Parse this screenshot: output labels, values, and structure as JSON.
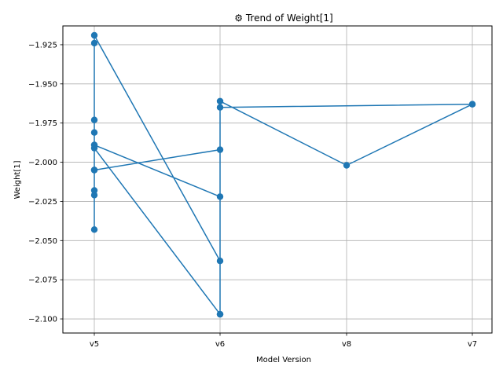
{
  "chart_data": {
    "type": "line",
    "title": "⚙ Trend of Weight[1]",
    "xlabel": "Model Version",
    "ylabel": "Weight[1]",
    "categories": [
      "v5",
      "v6",
      "v8",
      "v7"
    ],
    "ylim": [
      -2.109,
      -1.913
    ],
    "yticks": [
      -1.925,
      -1.95,
      -1.975,
      -2.0,
      -2.025,
      -2.05,
      -2.075,
      -2.1
    ],
    "ytick_labels": [
      "−1.925",
      "−1.950",
      "−1.975",
      "−2.000",
      "−2.025",
      "−2.050",
      "−2.075",
      "−2.100"
    ],
    "grid": true,
    "color": "#1f77b4",
    "marker": "circle",
    "series": [
      {
        "x": [
          "v5",
          "v5",
          "v5",
          "v5",
          "v5",
          "v5",
          "v5",
          "v6",
          "v6",
          "v6",
          "v8",
          "v7",
          "v7",
          "v6",
          "v6",
          "v5",
          "v5",
          "v5",
          "v5",
          "v6",
          "v6",
          "v5",
          "v5"
        ],
        "values": [
          -2.043,
          -2.021,
          -2.018,
          -1.981,
          -1.973,
          -1.924,
          -1.919,
          -2.063,
          -2.097,
          -1.961,
          -2.002,
          -1.963,
          -1.963,
          -1.965,
          -1.992,
          -2.005,
          -2.005,
          -1.989,
          -1.991,
          -2.097,
          -2.022,
          -1.989,
          -2.005
        ]
      }
    ]
  }
}
